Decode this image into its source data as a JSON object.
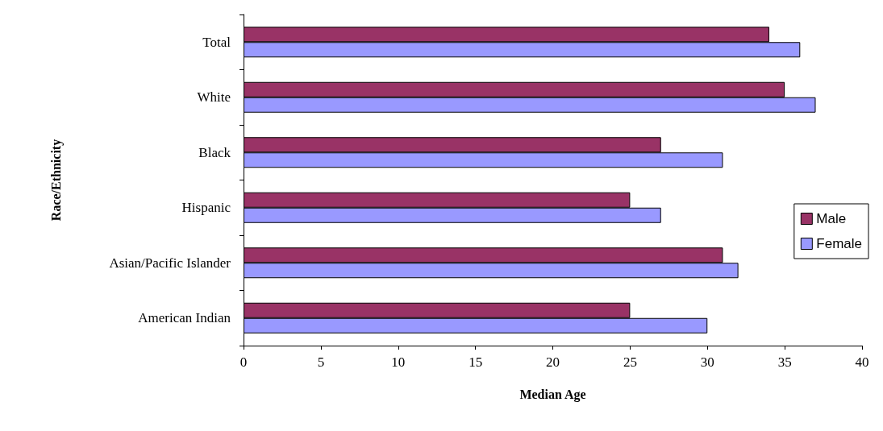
{
  "chart_data": {
    "type": "bar",
    "orientation": "horizontal",
    "xlabel": "Median Age",
    "ylabel": "Race/Ethnicity",
    "categories": [
      "Total",
      "White",
      "Black",
      "Hispanic",
      "Asian/Pacific Islander",
      "American Indian"
    ],
    "series": [
      {
        "name": "Male",
        "color": "#993366",
        "values": [
          34,
          35,
          27,
          25,
          31,
          25
        ]
      },
      {
        "name": "Female",
        "color": "#9999ff",
        "values": [
          36,
          37,
          31,
          27,
          32,
          30
        ]
      }
    ],
    "xlim": [
      0,
      40
    ],
    "xticks": [
      0,
      5,
      10,
      15,
      20,
      25,
      30,
      35,
      40
    ],
    "grid": false,
    "legend": "right"
  }
}
